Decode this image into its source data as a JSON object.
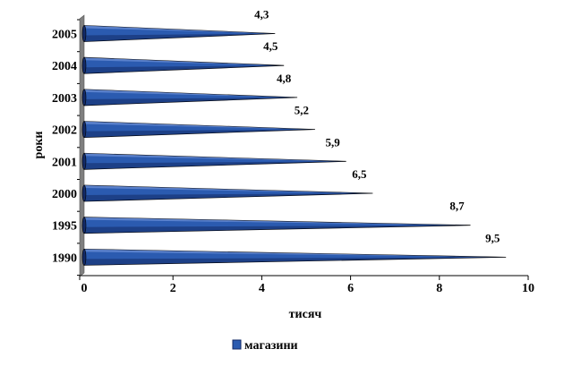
{
  "chart_data": {
    "type": "bar",
    "orientation": "horizontal",
    "categories": [
      "2005",
      "2004",
      "2003",
      "2002",
      "2001",
      "2000",
      "1995",
      "1990"
    ],
    "series": [
      {
        "name": "магазини",
        "values": [
          4.3,
          4.5,
          4.8,
          5.2,
          5.9,
          6.5,
          8.7,
          9.5
        ]
      }
    ],
    "data_labels": [
      "4,3",
      "4,5",
      "4,8",
      "5,2",
      "5,9",
      "6,5",
      "8,7",
      "9,5"
    ],
    "xlabel": "тисяч",
    "ylabel": "роки",
    "xlim": [
      0,
      10
    ],
    "xticks": [
      "0",
      "2",
      "4",
      "6",
      "8",
      "10"
    ],
    "grid": false,
    "legend_position": "bottom",
    "bar_shape": "cone",
    "colors": {
      "bar_fill": "#2b5bb0",
      "bar_dark": "#132a66",
      "bar_light": "#6f92d8",
      "wall": "#7f7f7f"
    }
  }
}
